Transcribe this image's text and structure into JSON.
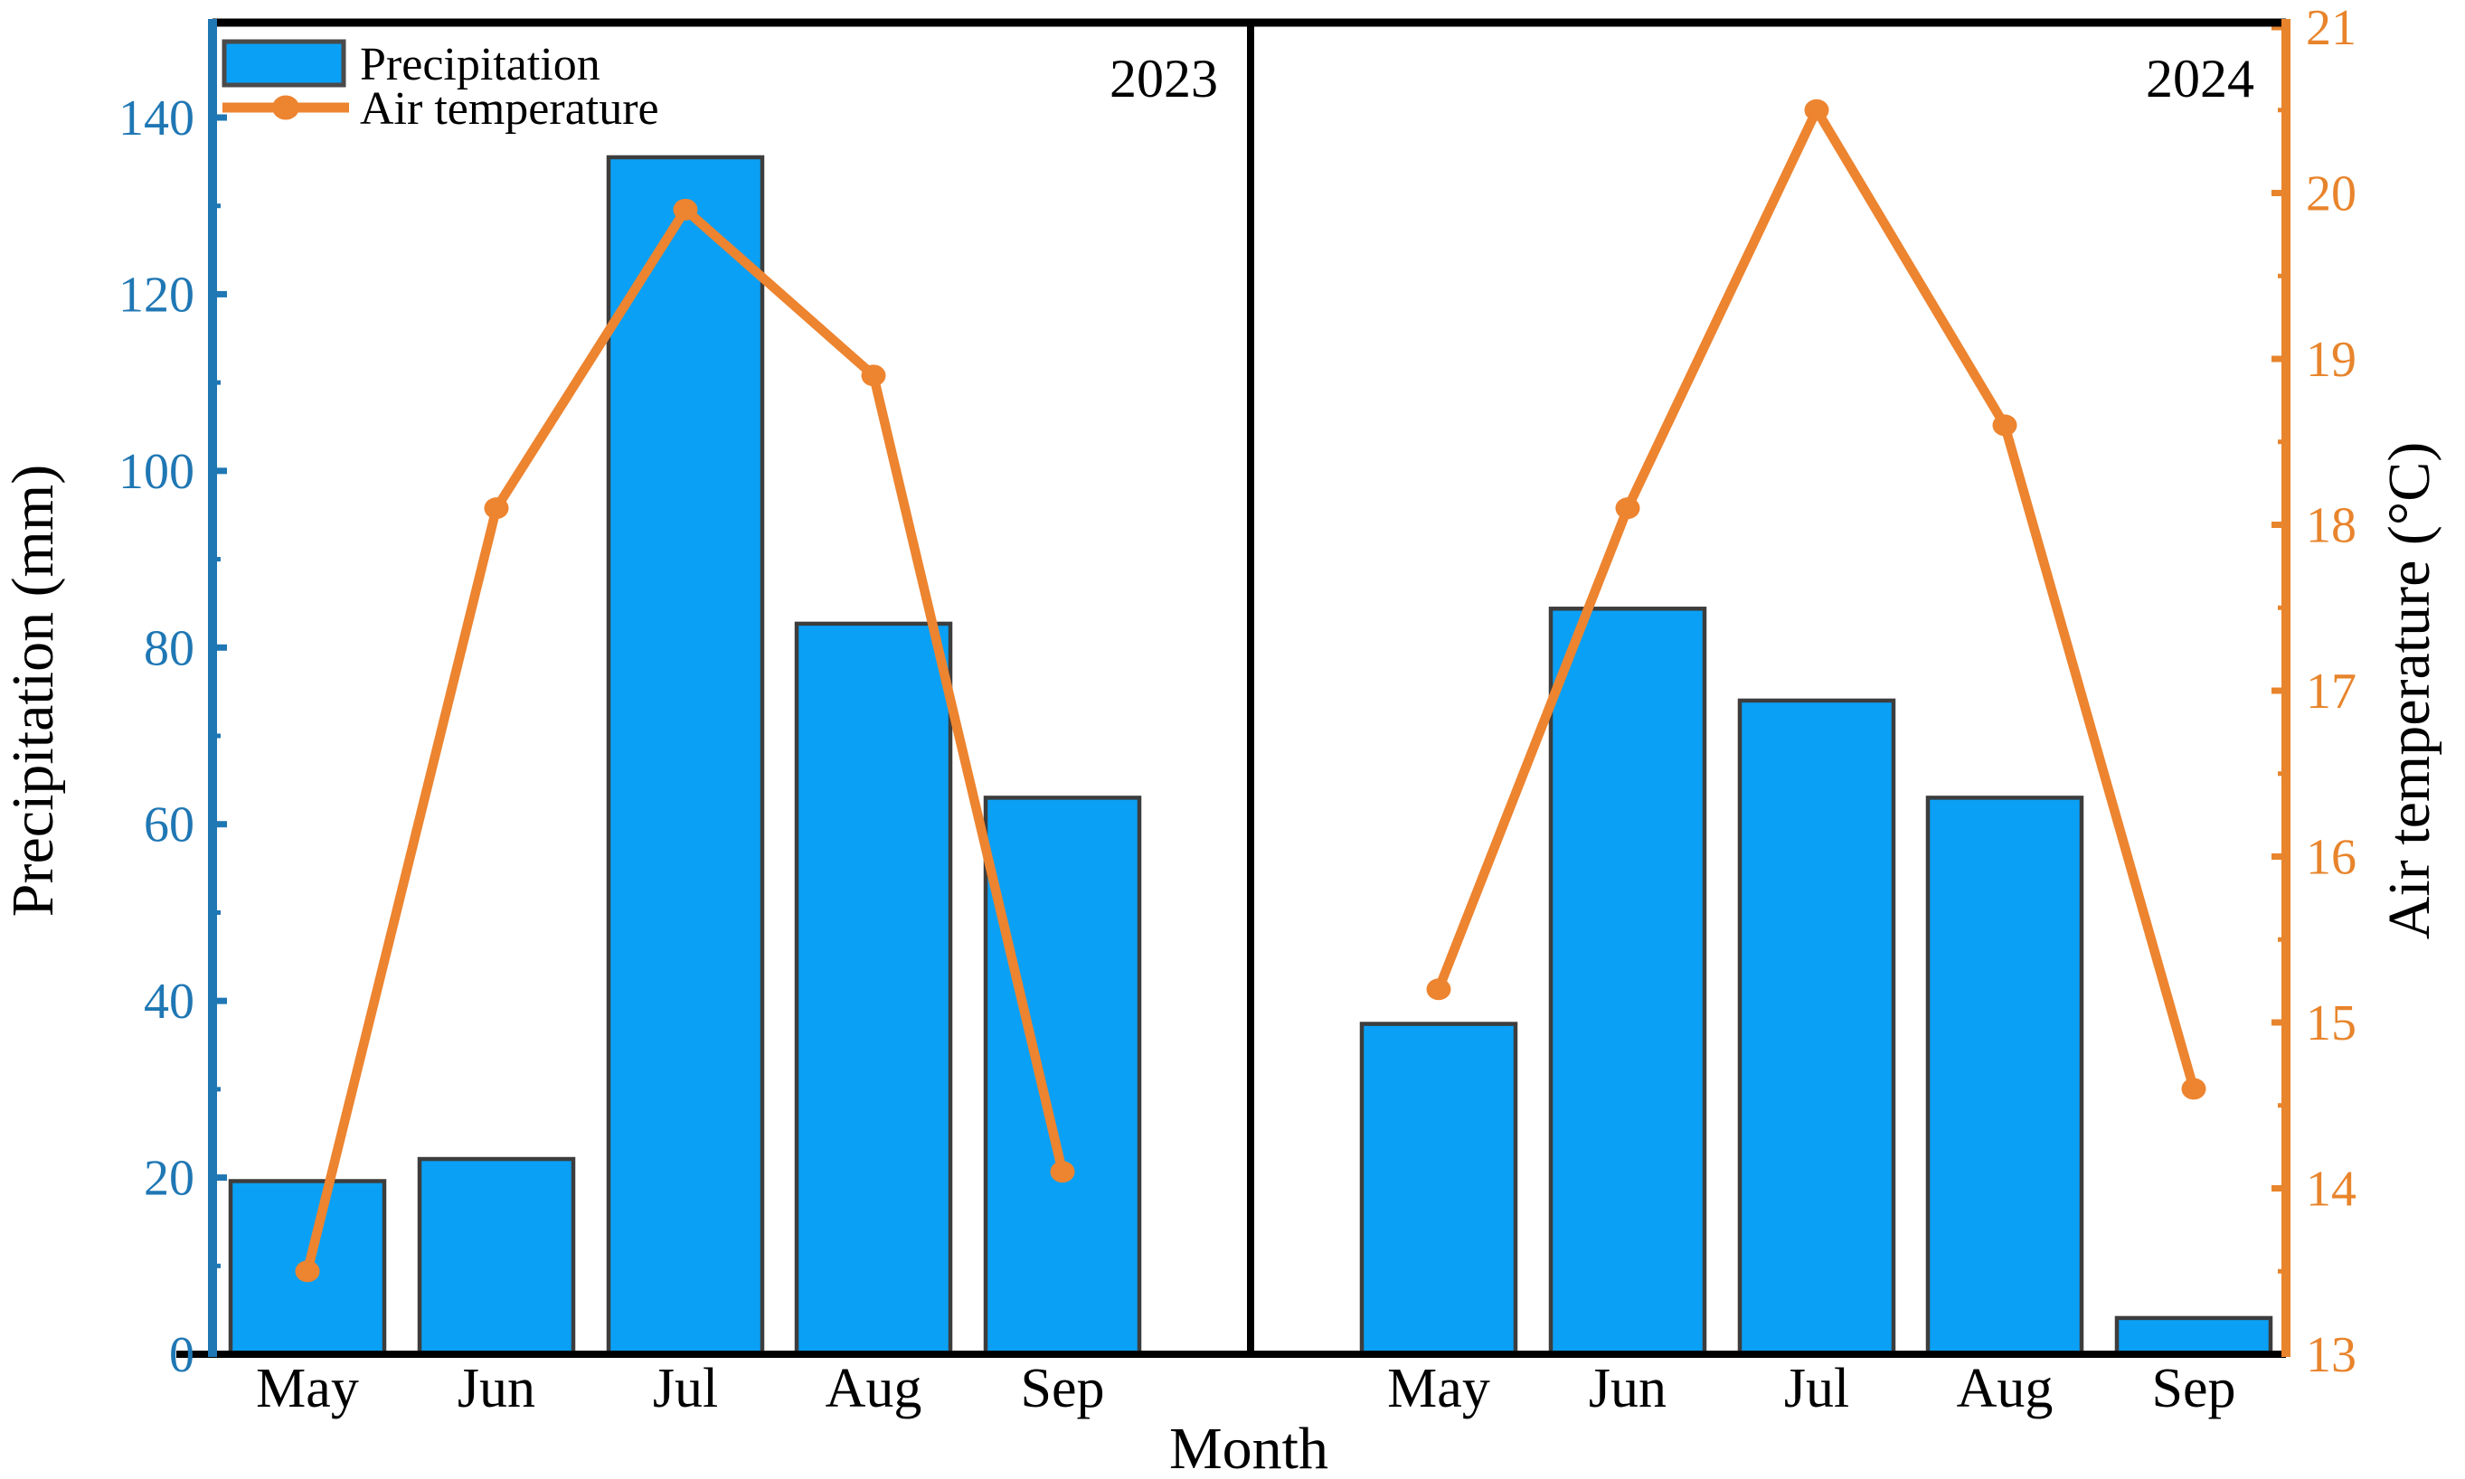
{
  "page": {
    "background": "#ffffff"
  },
  "legend": {
    "items": [
      {
        "label": "Precipitation",
        "swatch": "bar"
      },
      {
        "label": "Air temperature",
        "swatch": "line-marker"
      }
    ]
  },
  "panels": [
    {
      "year": "2023"
    },
    {
      "year": "2024"
    }
  ],
  "axes": {
    "x": {
      "label": "Month",
      "categories": [
        "May",
        "Jun",
        "Jul",
        "Aug",
        "Sep"
      ]
    },
    "y_left": {
      "label": "Precipitation (mm)",
      "ticks": [
        0,
        20,
        40,
        60,
        80,
        100,
        120,
        140
      ],
      "range": [
        0,
        150.2
      ],
      "minor_step": 10,
      "color": "#1f77b4"
    },
    "y_right": {
      "label": "Air temperature (°C)",
      "ticks": [
        13,
        14,
        15,
        16,
        17,
        18,
        19,
        20,
        21
      ],
      "range": [
        13,
        21
      ],
      "minor_step": 0.5,
      "color": "#e8842c"
    }
  },
  "colors": {
    "bar_fill": "#0aa0f5",
    "bar_edge": "#3d3d3d",
    "left_axis": "#1f77b4",
    "right_axis": "#e8842c",
    "line": "#ed8430",
    "frame": "#000000",
    "text": "#000000"
  },
  "chart_data": [
    {
      "type": "combo",
      "panel_label": "2023",
      "categories": [
        "May",
        "Jun",
        "Jul",
        "Aug",
        "Sep"
      ],
      "series": [
        {
          "name": "Precipitation",
          "type": "bar",
          "axis": "left",
          "unit": "mm",
          "values": [
            19.6,
            22.1,
            135.5,
            82.7,
            63.0
          ]
        },
        {
          "name": "Air temperature",
          "type": "line",
          "axis": "right",
          "unit": "°C",
          "values": [
            13.5,
            18.1,
            19.9,
            18.9,
            14.1
          ]
        }
      ]
    },
    {
      "type": "combo",
      "panel_label": "2024",
      "categories": [
        "May",
        "Jun",
        "Jul",
        "Aug",
        "Sep"
      ],
      "series": [
        {
          "name": "Precipitation",
          "type": "bar",
          "axis": "left",
          "unit": "mm",
          "values": [
            37.4,
            84.4,
            74.0,
            63.0,
            4.1
          ]
        },
        {
          "name": "Air temperature",
          "type": "line",
          "axis": "right",
          "unit": "°C",
          "values": [
            15.2,
            18.1,
            20.5,
            18.6,
            14.6
          ]
        }
      ]
    }
  ]
}
